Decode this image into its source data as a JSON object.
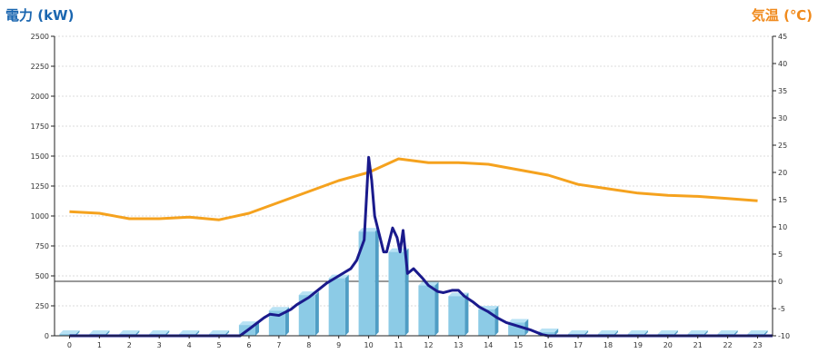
{
  "chart_data": {
    "type": "bar+line",
    "left_axis_title": "電力 (kW)",
    "right_axis_title": "気温 (℃)",
    "categories": [
      "0",
      "1",
      "2",
      "3",
      "4",
      "5",
      "6",
      "7",
      "8",
      "9",
      "10",
      "11",
      "12",
      "13",
      "14",
      "15",
      "16",
      "17",
      "18",
      "19",
      "20",
      "21",
      "22",
      "23"
    ],
    "y_left": {
      "min": 0,
      "max": 2500,
      "ticks": [
        "0",
        "250",
        "500",
        "750",
        "1000",
        "1250",
        "1500",
        "1750",
        "2000",
        "2250",
        "2500"
      ]
    },
    "y_right": {
      "min": -10,
      "max": 45,
      "ticks": [
        "-10",
        "-5",
        "0",
        "5",
        "10",
        "15",
        "20",
        "25",
        "30",
        "35",
        "40",
        "45"
      ]
    },
    "power_bars": [
      15,
      15,
      15,
      15,
      15,
      15,
      90,
      210,
      340,
      480,
      870,
      700,
      420,
      330,
      220,
      110,
      30,
      15,
      15,
      15,
      15,
      15,
      15,
      15
    ],
    "temperature": [
      12.8,
      12.5,
      11.5,
      11.5,
      11.8,
      11.3,
      12.5,
      14.5,
      16.5,
      18.5,
      20.0,
      22.5,
      21.8,
      21.8,
      21.5,
      20.5,
      19.5,
      17.8,
      17.0,
      16.2,
      15.8,
      15.6,
      15.2,
      14.8
    ],
    "power_line": [
      [
        0,
        0
      ],
      [
        5.7,
        0
      ],
      [
        6.0,
        55
      ],
      [
        6.5,
        150
      ],
      [
        6.7,
        180
      ],
      [
        7.0,
        170
      ],
      [
        7.4,
        220
      ],
      [
        7.6,
        260
      ],
      [
        8.0,
        320
      ],
      [
        8.3,
        380
      ],
      [
        8.6,
        440
      ],
      [
        9.0,
        500
      ],
      [
        9.4,
        560
      ],
      [
        9.6,
        630
      ],
      [
        9.85,
        800
      ],
      [
        10.0,
        1490
      ],
      [
        10.1,
        1300
      ],
      [
        10.2,
        1000
      ],
      [
        10.35,
        850
      ],
      [
        10.5,
        700
      ],
      [
        10.6,
        700
      ],
      [
        10.7,
        800
      ],
      [
        10.8,
        900
      ],
      [
        10.95,
        820
      ],
      [
        11.05,
        700
      ],
      [
        11.15,
        880
      ],
      [
        11.3,
        520
      ],
      [
        11.5,
        560
      ],
      [
        11.8,
        480
      ],
      [
        12.0,
        420
      ],
      [
        12.3,
        370
      ],
      [
        12.5,
        360
      ],
      [
        12.8,
        380
      ],
      [
        13.0,
        380
      ],
      [
        13.2,
        330
      ],
      [
        13.5,
        280
      ],
      [
        13.7,
        240
      ],
      [
        14.0,
        200
      ],
      [
        14.3,
        150
      ],
      [
        14.6,
        110
      ],
      [
        15.0,
        80
      ],
      [
        15.4,
        50
      ],
      [
        15.8,
        10
      ],
      [
        16.0,
        0
      ],
      [
        23.5,
        0
      ]
    ],
    "colors": {
      "bar": "#8ccbe6",
      "bar_side": "#4f9dc4",
      "bar_top": "#b8e2f4",
      "temp": "#f5a21e",
      "power": "#1a1a8c",
      "left_title": "#1a66b0",
      "right_title": "#f08a1c"
    }
  }
}
